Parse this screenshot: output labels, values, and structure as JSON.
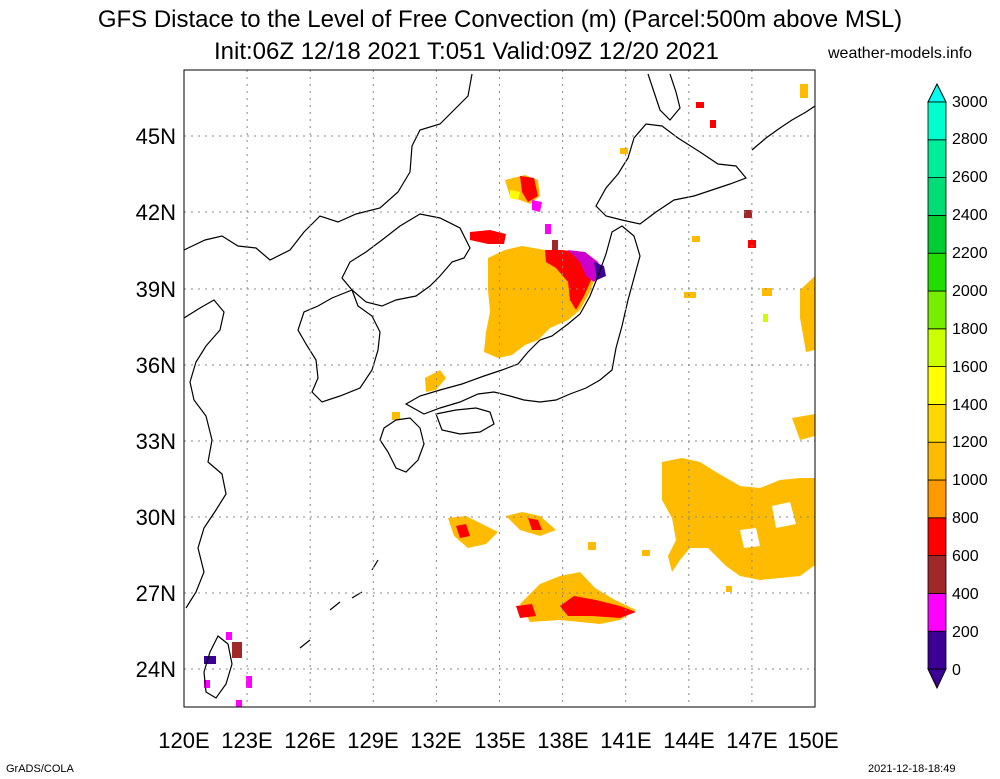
{
  "title": {
    "line1": "GFS Distace to the Level of Free Convection (m) (Parcel:500m above MSL)",
    "line2": "Init:06Z 12/18 2021 T:051 Valid:09Z 12/20 2021",
    "site": "weather-models.info"
  },
  "footer": {
    "left": "GrADS/COLA",
    "right": "2021-12-18-18:49"
  },
  "map": {
    "lon_range": [
      120,
      150
    ],
    "lat_range": [
      22.2,
      47.6
    ],
    "lon_ticks": [
      "120E",
      "123E",
      "126E",
      "129E",
      "132E",
      "135E",
      "138E",
      "141E",
      "144E",
      "147E",
      "150E"
    ],
    "lat_ticks": [
      "24N",
      "27N",
      "30N",
      "33N",
      "36N",
      "39N",
      "42N",
      "45N"
    ],
    "grid": "dotted"
  },
  "colorbar": {
    "labels": [
      "0",
      "200",
      "400",
      "600",
      "800",
      "1000",
      "1200",
      "1400",
      "1600",
      "1800",
      "2000",
      "2200",
      "2400",
      "2600",
      "2800",
      "3000"
    ],
    "colors": [
      "#3c0096",
      "#ff00ff",
      "#a02828",
      "#ff0000",
      "#ff9900",
      "#ffbb00",
      "#ffd700",
      "#ffff00",
      "#ccff00",
      "#77ee00",
      "#22dd00",
      "#00cc33",
      "#00dd77",
      "#00ee99",
      "#00ffcc",
      "#00ffee"
    ],
    "colors_meaning": "bands 0-200 through 2800-3000"
  }
}
